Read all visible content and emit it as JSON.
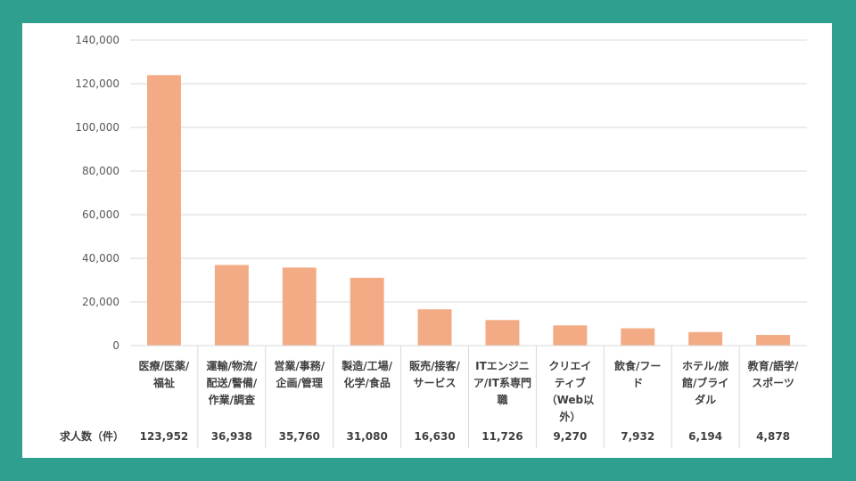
{
  "colors": {
    "background": "#2fa08f",
    "panel": "#ffffff",
    "bar": "#f2ab84",
    "grid": "#d9d9d9",
    "text": "#404040"
  },
  "chart_data": {
    "type": "bar",
    "categories": [
      "医療/医薬/福祉",
      "運輸/物流/配送/警備/作業/調査",
      "営業/事務/企画/管理",
      "製造/工場/化学/食品",
      "販売/接客/サービス",
      "ITエンジニア/IT系専門職",
      "クリエイティブ（Web以外）",
      "飲食/フード",
      "ホテル/旅館/ブライダル",
      "教育/語学/スポーツ"
    ],
    "category_lines": [
      [
        "医療/医薬/",
        "福祉"
      ],
      [
        "運輸/物流/",
        "配送/警備/",
        "作業/調査"
      ],
      [
        "営業/事務/",
        "企画/管理"
      ],
      [
        "製造/工場/",
        "化学/食品"
      ],
      [
        "販売/接客/",
        "サービス"
      ],
      [
        "ITエンジニ",
        "ア/IT系専門",
        "職"
      ],
      [
        "クリエイ",
        "ティブ",
        "（Web以",
        "外）"
      ],
      [
        "飲食/フー",
        "ド"
      ],
      [
        "ホテル/旅",
        "館/ブライ",
        "ダル"
      ],
      [
        "教育/語学/",
        "スポーツ"
      ]
    ],
    "values": [
      123952,
      36938,
      35760,
      31080,
      16630,
      11726,
      9270,
      7932,
      6194,
      4878
    ],
    "value_labels": [
      "123,952",
      "36,938",
      "35,760",
      "31,080",
      "16,630",
      "11,726",
      "9,270",
      "7,932",
      "6,194",
      "4,878"
    ],
    "table_row_title": "求人数（件）",
    "ylim": [
      0,
      140000
    ],
    "yticks": [
      0,
      20000,
      40000,
      60000,
      80000,
      100000,
      120000,
      140000
    ],
    "ytick_labels": [
      "0",
      "20,000",
      "40,000",
      "60,000",
      "80,000",
      "100,000",
      "120,000",
      "140,000"
    ],
    "grid": true,
    "title": "",
    "xlabel": "",
    "ylabel": ""
  }
}
